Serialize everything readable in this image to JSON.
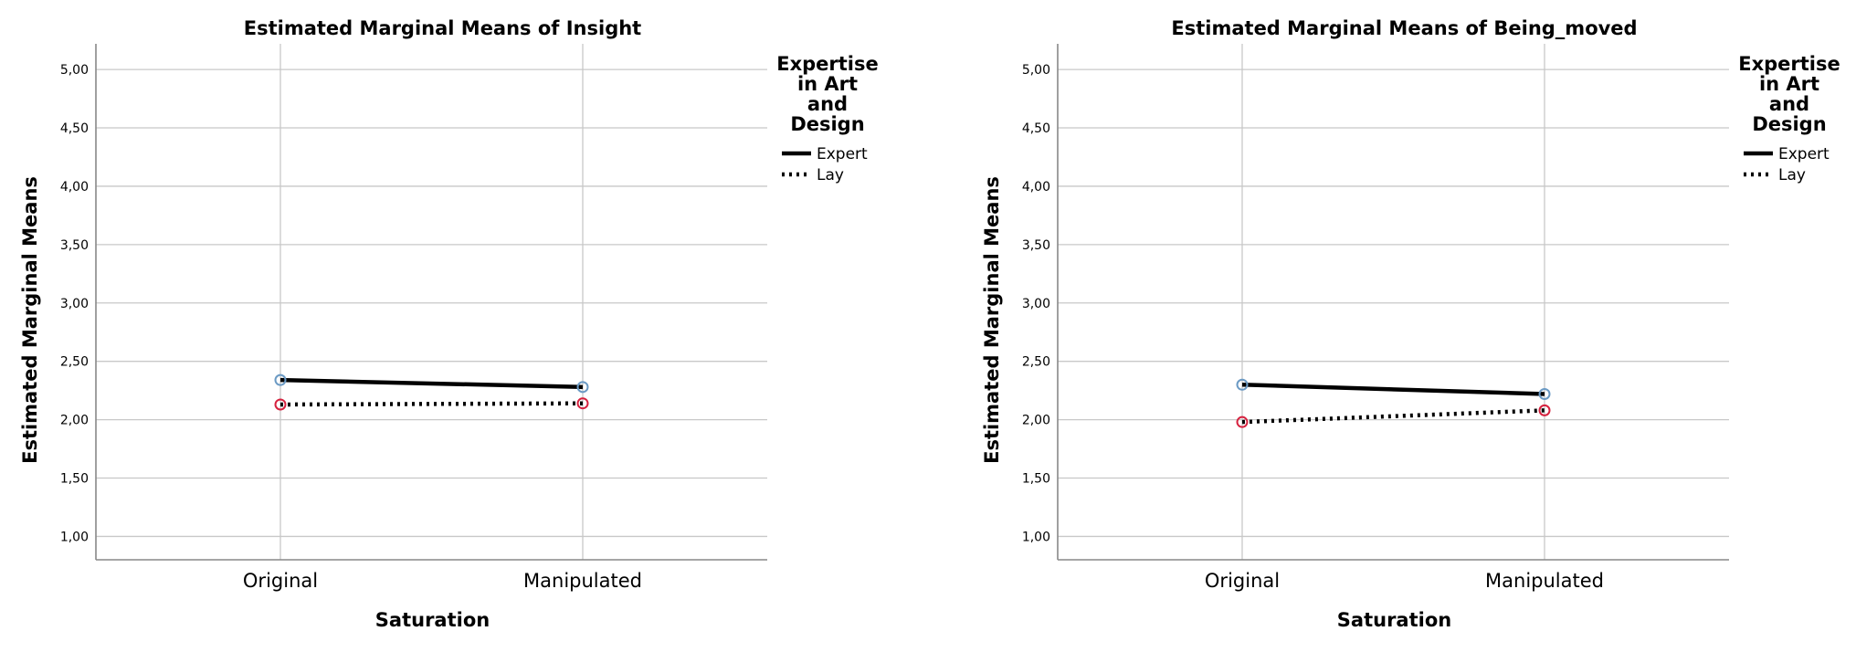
{
  "chart_data": [
    {
      "type": "line",
      "title": "Estimated Marginal Means of Insight",
      "xlabel": "Saturation",
      "ylabel": "Estimated Marginal Means",
      "categories": [
        "Original",
        "Manipulated"
      ],
      "ylim": [
        0.8,
        5.22
      ],
      "yticks": [
        "1,00",
        "1,50",
        "2,00",
        "2,50",
        "3,00",
        "3,50",
        "4,00",
        "4,50",
        "5,00"
      ],
      "ytick_values": [
        1.0,
        1.5,
        2.0,
        2.5,
        3.0,
        3.5,
        4.0,
        4.5,
        5.0
      ],
      "grid": true,
      "legend": {
        "title": [
          "Expertise",
          "in Art",
          "and",
          "Design"
        ],
        "position": "right"
      },
      "series": [
        {
          "name": "Expert",
          "values": [
            2.34,
            2.28
          ],
          "style": "solid",
          "marker_color": "#6b9ac4"
        },
        {
          "name": "Lay",
          "values": [
            2.13,
            2.14
          ],
          "style": "dotted",
          "marker_color": "#d6223f"
        }
      ]
    },
    {
      "type": "line",
      "title": "Estimated Marginal Means of Being_moved",
      "xlabel": "Saturation",
      "ylabel": "Estimated Marginal Means",
      "categories": [
        "Original",
        "Manipulated"
      ],
      "ylim": [
        0.8,
        5.22
      ],
      "yticks": [
        "1,00",
        "1,50",
        "2,00",
        "2,50",
        "3,00",
        "3,50",
        "4,00",
        "4,50",
        "5,00"
      ],
      "ytick_values": [
        1.0,
        1.5,
        2.0,
        2.5,
        3.0,
        3.5,
        4.0,
        4.5,
        5.0
      ],
      "grid": true,
      "legend": {
        "title": [
          "Expertise",
          "in Art",
          "and",
          "Design"
        ],
        "position": "right"
      },
      "series": [
        {
          "name": "Expert",
          "values": [
            2.3,
            2.22
          ],
          "style": "solid",
          "marker_color": "#6b9ac4"
        },
        {
          "name": "Lay",
          "values": [
            1.98,
            2.08
          ],
          "style": "dotted",
          "marker_color": "#d6223f"
        }
      ]
    }
  ]
}
